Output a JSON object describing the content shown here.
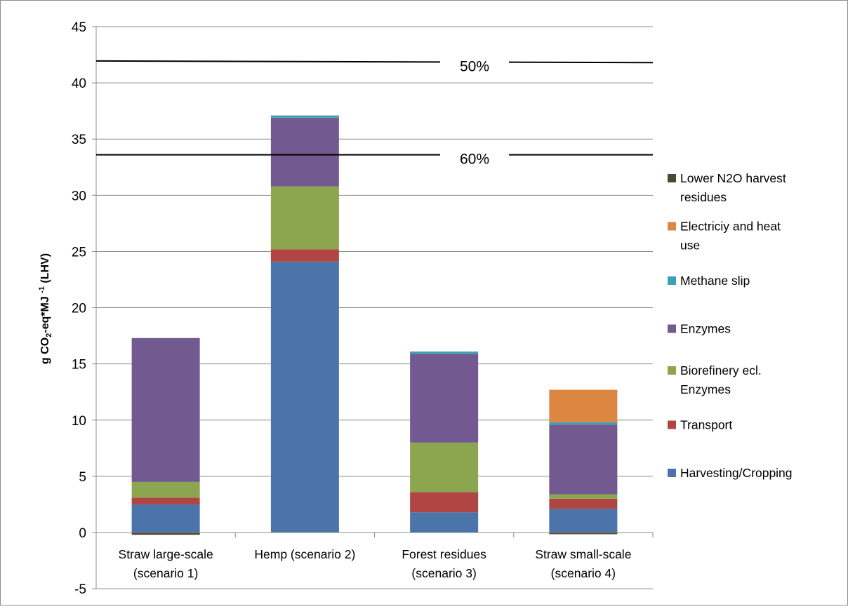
{
  "chart_data": {
    "type": "bar",
    "stacked": true,
    "categories": [
      [
        "Straw large-scale",
        "(scenario 1)"
      ],
      [
        "Hemp (scenario 2)"
      ],
      [
        "Forest residues",
        "(scenario 3)"
      ],
      [
        "Straw small-scale",
        "(scenario 4)"
      ]
    ],
    "ylabel": {
      "prefix": "g CO",
      "sub": "2",
      "middle": "-eq*MJ ",
      "sup": "-1",
      "suffix": " (LHV)"
    },
    "ylim": [
      -5,
      45
    ],
    "yticks": [
      "-5",
      "0",
      "5",
      "10",
      "15",
      "20",
      "25",
      "30",
      "35",
      "40",
      "45"
    ],
    "grid": true,
    "legend_position": "right",
    "series": [
      {
        "name": "Harvesting/Cropping",
        "color": "#4a74aa",
        "values": [
          2.5,
          24.1,
          1.8,
          2.1
        ]
      },
      {
        "name": "Transport",
        "color": "#b04643",
        "values": [
          0.6,
          1.1,
          1.8,
          0.9
        ]
      },
      {
        "name": "Biorefinery ecl. Enzymes",
        "color": "#8ca54f",
        "values": [
          1.4,
          5.6,
          4.4,
          0.4
        ]
      },
      {
        "name": "Enzymes",
        "color": "#72598f",
        "values": [
          12.8,
          6.1,
          7.9,
          6.2
        ]
      },
      {
        "name": "Methane slip",
        "color": "#3ea0b8",
        "values": [
          0,
          0.2,
          0.2,
          0.2
        ]
      },
      {
        "name": "Electriciy and heat use",
        "color": "#dd8642",
        "values": [
          0,
          0,
          0,
          2.9
        ]
      },
      {
        "name": "Lower N2O harvest residues",
        "color": "#4f4630",
        "values": [
          -0.2,
          0,
          0,
          -0.15
        ]
      }
    ],
    "legend_order": [
      {
        "series": 6,
        "lines": [
          "Lower N2O harvest",
          "residues"
        ]
      },
      {
        "series": 5,
        "lines": [
          "Electriciy and heat",
          "use"
        ]
      },
      {
        "series": 4,
        "lines": [
          "Methane slip"
        ]
      },
      {
        "series": 3,
        "lines": [
          "Enzymes"
        ]
      },
      {
        "series": 2,
        "lines": [
          "Biorefinery ecl.",
          "Enzymes"
        ]
      },
      {
        "series": 1,
        "lines": [
          "Transport"
        ]
      },
      {
        "series": 0,
        "lines": [
          "Harvesting/Cropping"
        ]
      }
    ],
    "threshold_lines": [
      {
        "label": "50%",
        "y_left": 41.95,
        "y_right": 41.8
      },
      {
        "label": "60%",
        "y_left": 33.6,
        "y_right": 33.6
      }
    ]
  }
}
